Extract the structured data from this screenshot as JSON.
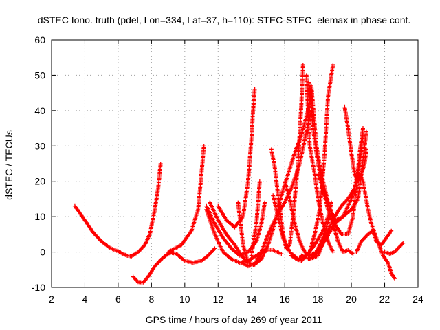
{
  "chart_data": {
    "type": "scatter",
    "title": "dSTEC Iono. truth (pdel, Lon=334, Lat=37, h=110): STEC-STEC_elemax in phase cont.",
    "xlabel": "GPS time / hours of day 269 of year 2011",
    "ylabel": "dSTEC  / TECUs",
    "xlim": [
      2,
      24
    ],
    "ylim": [
      -10,
      60
    ],
    "xticks": [
      2,
      4,
      6,
      8,
      10,
      12,
      14,
      16,
      18,
      20,
      22,
      24
    ],
    "yticks": [
      -10,
      0,
      10,
      20,
      30,
      40,
      50,
      60
    ],
    "grid": true,
    "marker": "plus",
    "color": "#ff0000",
    "series": [
      {
        "points": [
          [
            3.4,
            13
          ],
          [
            4,
            9
          ],
          [
            4.5,
            5.5
          ],
          [
            5,
            3
          ],
          [
            5.5,
            1.2
          ],
          [
            6,
            0.2
          ],
          [
            6.5,
            -1
          ],
          [
            6.8,
            -1.2
          ],
          [
            7.2,
            0
          ],
          [
            7.6,
            2
          ],
          [
            7.9,
            5
          ],
          [
            8.2,
            12
          ],
          [
            8.4,
            18
          ],
          [
            8.55,
            25
          ]
        ]
      },
      {
        "points": [
          [
            6.9,
            -7
          ],
          [
            7.2,
            -8.5
          ],
          [
            7.5,
            -8.6
          ],
          [
            7.8,
            -7
          ],
          [
            8.2,
            -4
          ],
          [
            8.6,
            -2
          ],
          [
            9.0,
            -0.5
          ],
          [
            9.2,
            0
          ]
        ]
      },
      {
        "points": [
          [
            9.0,
            0
          ],
          [
            9.5,
            -0.5
          ],
          [
            10,
            -2.5
          ],
          [
            10.5,
            -3
          ],
          [
            11,
            -2.5
          ],
          [
            11.4,
            -1
          ],
          [
            11.8,
            1
          ]
        ]
      },
      {
        "points": [
          [
            9.0,
            0
          ],
          [
            9.8,
            2
          ],
          [
            10.4,
            6
          ],
          [
            10.8,
            12
          ],
          [
            11.0,
            22
          ],
          [
            11.15,
            30
          ]
        ]
      },
      {
        "points": [
          [
            11.3,
            13
          ],
          [
            11.8,
            8
          ],
          [
            12.3,
            4
          ],
          [
            12.8,
            1
          ],
          [
            13.3,
            -1
          ],
          [
            13.8,
            0
          ],
          [
            14.3,
            3
          ],
          [
            14.6,
            8
          ],
          [
            14.8,
            14
          ]
        ]
      },
      {
        "points": [
          [
            11.3,
            12
          ],
          [
            11.8,
            5
          ],
          [
            12.3,
            0
          ],
          [
            12.8,
            -2
          ],
          [
            13.3,
            -3
          ],
          [
            13.8,
            -2.5
          ],
          [
            14.3,
            -1
          ],
          [
            14.8,
            0.5
          ],
          [
            15.3,
            0.5
          ],
          [
            15.8,
            -0.5
          ]
        ]
      },
      {
        "points": [
          [
            11.5,
            14
          ],
          [
            12.0,
            9
          ],
          [
            12.5,
            5
          ],
          [
            13.0,
            2
          ],
          [
            13.4,
            -1
          ],
          [
            13.8,
            -3
          ]
        ]
      },
      {
        "points": [
          [
            12,
            13
          ],
          [
            12.5,
            9
          ],
          [
            13,
            7
          ],
          [
            13.5,
            10
          ],
          [
            13.8,
            20
          ],
          [
            14.0,
            32
          ],
          [
            14.1,
            40
          ],
          [
            14.2,
            46
          ]
        ]
      },
      {
        "points": [
          [
            13.2,
            14
          ],
          [
            13.5,
            2
          ],
          [
            13.8,
            -3
          ],
          [
            14.2,
            -3.5
          ],
          [
            14.6,
            -2
          ],
          [
            15.0,
            2
          ],
          [
            15.4,
            8
          ],
          [
            15.8,
            16
          ],
          [
            16.2,
            22
          ],
          [
            16.6,
            28
          ],
          [
            17.0,
            33
          ],
          [
            17.4,
            40
          ],
          [
            17.6,
            46
          ]
        ]
      },
      {
        "points": [
          [
            13.4,
            -3
          ],
          [
            13.8,
            -4
          ],
          [
            14.2,
            -3.5
          ],
          [
            14.6,
            0
          ],
          [
            15.0,
            5
          ],
          [
            15.5,
            10
          ],
          [
            16.0,
            14
          ],
          [
            16.4,
            18
          ],
          [
            16.9,
            25
          ],
          [
            17.3,
            34
          ],
          [
            17.6,
            40
          ]
        ]
      },
      {
        "points": [
          [
            14.0,
            -1
          ],
          [
            14.3,
            8
          ],
          [
            14.5,
            20
          ]
        ]
      },
      {
        "points": [
          [
            15.2,
            29
          ],
          [
            15.4,
            24
          ],
          [
            15.6,
            16
          ],
          [
            15.9,
            5
          ],
          [
            16.1,
            1
          ],
          [
            16.3,
            2
          ],
          [
            16.5,
            10
          ],
          [
            16.8,
            25
          ],
          [
            17.0,
            42
          ],
          [
            17.1,
            53
          ]
        ]
      },
      {
        "points": [
          [
            15.3,
            16
          ],
          [
            15.6,
            10
          ],
          [
            15.9,
            4
          ],
          [
            16.3,
            0
          ],
          [
            16.8,
            -2
          ],
          [
            17.3,
            -1
          ],
          [
            17.8,
            2
          ],
          [
            18.3,
            6
          ],
          [
            18.6,
            10
          ],
          [
            18.8,
            14
          ]
        ]
      },
      {
        "points": [
          [
            16.0,
            20
          ],
          [
            16.3,
            15
          ],
          [
            16.6,
            8
          ],
          [
            16.9,
            3
          ],
          [
            17.2,
            0
          ],
          [
            17.5,
            -1
          ],
          [
            17.9,
            0
          ],
          [
            18.3,
            4
          ],
          [
            18.7,
            10
          ]
        ]
      },
      {
        "points": [
          [
            16.4,
            -1
          ],
          [
            16.7,
            -2
          ],
          [
            17.0,
            -2.5
          ],
          [
            17.3,
            -1
          ],
          [
            17.5,
            0
          ],
          [
            17.8,
            5
          ],
          [
            18.1,
            12
          ],
          [
            18.4,
            28
          ],
          [
            18.6,
            44
          ],
          [
            18.9,
            53
          ]
        ]
      },
      {
        "points": [
          [
            17.3,
            50
          ],
          [
            17.5,
            30
          ],
          [
            17.8,
            22
          ],
          [
            18.0,
            15
          ],
          [
            18.3,
            8
          ],
          [
            18.6,
            3
          ],
          [
            18.9,
            0
          ]
        ]
      },
      {
        "points": [
          [
            17.45,
            48
          ],
          [
            17.7,
            35
          ],
          [
            18.0,
            25
          ],
          [
            18.3,
            18
          ],
          [
            18.6,
            12
          ],
          [
            18.9,
            8
          ],
          [
            19.2,
            3
          ],
          [
            19.5,
            0
          ],
          [
            19.8,
            0.5
          ],
          [
            20.1,
            -0.5
          ]
        ]
      },
      {
        "points": [
          [
            17.6,
            47
          ],
          [
            17.9,
            30
          ],
          [
            18.2,
            22
          ],
          [
            18.6,
            14
          ],
          [
            19.0,
            8
          ],
          [
            19.4,
            5
          ],
          [
            19.8,
            5
          ],
          [
            20.1,
            10
          ],
          [
            20.3,
            18
          ],
          [
            20.5,
            28
          ],
          [
            20.7,
            35
          ]
        ]
      },
      {
        "points": [
          [
            17.0,
            -1
          ],
          [
            17.5,
            -2
          ],
          [
            18.0,
            -1
          ],
          [
            18.5,
            5
          ],
          [
            19.0,
            10
          ],
          [
            19.4,
            13
          ],
          [
            19.8,
            15
          ],
          [
            20.2,
            18
          ],
          [
            20.5,
            25
          ],
          [
            20.7,
            33
          ]
        ]
      },
      {
        "points": [
          [
            17.5,
            -2
          ],
          [
            18.0,
            0
          ],
          [
            18.5,
            4
          ],
          [
            19.0,
            8
          ],
          [
            19.5,
            10
          ],
          [
            20.0,
            12
          ],
          [
            20.4,
            15
          ],
          [
            20.6,
            22
          ],
          [
            20.8,
            30
          ],
          [
            20.9,
            34
          ]
        ]
      },
      {
        "points": [
          [
            18.0,
            22
          ],
          [
            18.5,
            15
          ],
          [
            19.0,
            9
          ],
          [
            19.5,
            10
          ],
          [
            20.0,
            15
          ],
          [
            20.3,
            20
          ],
          [
            20.5,
            22
          ],
          [
            20.7,
            20
          ],
          [
            21.0,
            12
          ],
          [
            21.2,
            8
          ],
          [
            21.5,
            4
          ],
          [
            21.9,
            -1
          ],
          [
            22.2,
            -3
          ],
          [
            22.4,
            -6
          ],
          [
            22.6,
            -7.5
          ]
        ]
      },
      {
        "points": [
          [
            19.6,
            41
          ],
          [
            19.8,
            35
          ],
          [
            20.0,
            28
          ],
          [
            20.2,
            22
          ],
          [
            20.4,
            20
          ],
          [
            20.6,
            22
          ],
          [
            20.8,
            25
          ],
          [
            20.9,
            29
          ]
        ]
      },
      {
        "points": [
          [
            20.3,
            0
          ],
          [
            20.6,
            3
          ],
          [
            21.0,
            5
          ],
          [
            21.3,
            6
          ],
          [
            21.5,
            3
          ],
          [
            21.8,
            2
          ],
          [
            22.1,
            4
          ],
          [
            22.4,
            6
          ]
        ]
      },
      {
        "points": [
          [
            22.0,
            0
          ],
          [
            22.3,
            -0.5
          ],
          [
            22.6,
            0
          ],
          [
            22.9,
            1.5
          ],
          [
            23.1,
            2.5
          ]
        ]
      }
    ]
  }
}
